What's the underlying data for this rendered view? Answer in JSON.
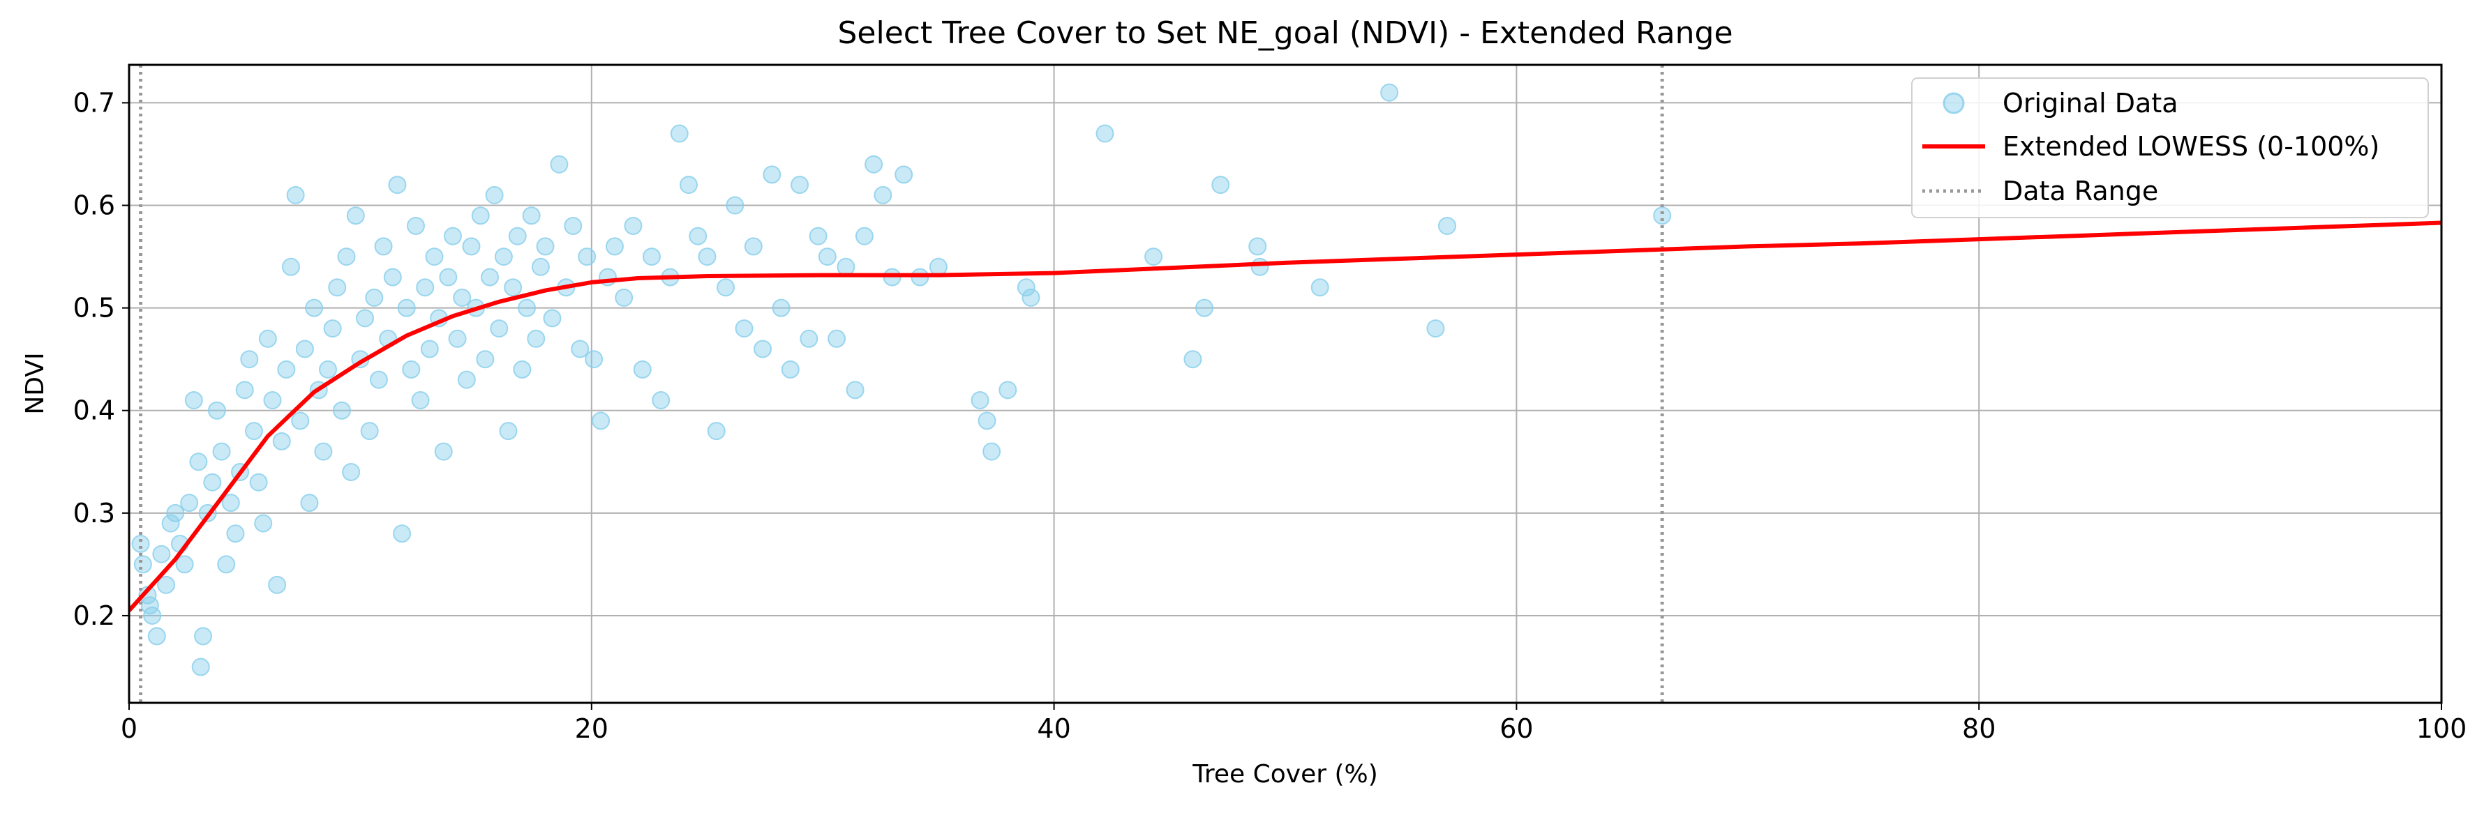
{
  "chart_data": {
    "type": "scatter",
    "title": "Select Tree Cover to Set NE_goal (NDVI) - Extended Range",
    "xlabel": "Tree Cover (%)",
    "ylabel": "NDVI",
    "xlim": [
      0,
      100
    ],
    "ylim": [
      0.115,
      0.737
    ],
    "xticks": [
      0,
      20,
      40,
      60,
      80,
      100
    ],
    "xtick_labels": [
      "0",
      "20",
      "40",
      "60",
      "80",
      "100"
    ],
    "yticks": [
      0.2,
      0.3,
      0.4,
      0.5,
      0.6,
      0.7
    ],
    "ytick_labels": [
      "0.2",
      "0.3",
      "0.4",
      "0.5",
      "0.6",
      "0.7"
    ],
    "grid": true,
    "legend_position": "top-right",
    "legend": [
      "Original Data",
      "Extended LOWESS (0-100%)",
      "Data Range"
    ],
    "colors": {
      "scatter": "#87ceeb",
      "lowess": "#ff0000",
      "range": "#999999",
      "grid": "#b0b0b0"
    },
    "series": [
      {
        "name": "Original Data",
        "type": "scatter",
        "points": [
          [
            0.5,
            0.27
          ],
          [
            0.6,
            0.25
          ],
          [
            0.8,
            0.22
          ],
          [
            1.0,
            0.2
          ],
          [
            1.2,
            0.18
          ],
          [
            1.4,
            0.26
          ],
          [
            0.9,
            0.21
          ],
          [
            1.6,
            0.23
          ],
          [
            1.8,
            0.29
          ],
          [
            2.0,
            0.3
          ],
          [
            2.2,
            0.27
          ],
          [
            2.4,
            0.25
          ],
          [
            2.6,
            0.31
          ],
          [
            2.8,
            0.41
          ],
          [
            3.0,
            0.35
          ],
          [
            3.1,
            0.15
          ],
          [
            3.2,
            0.18
          ],
          [
            3.4,
            0.3
          ],
          [
            3.6,
            0.33
          ],
          [
            3.8,
            0.4
          ],
          [
            4.0,
            0.36
          ],
          [
            4.2,
            0.25
          ],
          [
            4.4,
            0.31
          ],
          [
            4.6,
            0.28
          ],
          [
            4.8,
            0.34
          ],
          [
            5.0,
            0.42
          ],
          [
            5.2,
            0.45
          ],
          [
            5.4,
            0.38
          ],
          [
            5.6,
            0.33
          ],
          [
            5.8,
            0.29
          ],
          [
            6.0,
            0.47
          ],
          [
            6.2,
            0.41
          ],
          [
            6.4,
            0.23
          ],
          [
            6.6,
            0.37
          ],
          [
            6.8,
            0.44
          ],
          [
            7.0,
            0.54
          ],
          [
            7.2,
            0.61
          ],
          [
            7.4,
            0.39
          ],
          [
            7.6,
            0.46
          ],
          [
            7.8,
            0.31
          ],
          [
            8.0,
            0.5
          ],
          [
            8.2,
            0.42
          ],
          [
            8.4,
            0.36
          ],
          [
            8.6,
            0.44
          ],
          [
            8.8,
            0.48
          ],
          [
            9.0,
            0.52
          ],
          [
            9.2,
            0.4
          ],
          [
            9.4,
            0.55
          ],
          [
            9.6,
            0.34
          ],
          [
            9.8,
            0.59
          ],
          [
            10.0,
            0.45
          ],
          [
            10.2,
            0.49
          ],
          [
            10.4,
            0.38
          ],
          [
            10.6,
            0.51
          ],
          [
            10.8,
            0.43
          ],
          [
            11.0,
            0.56
          ],
          [
            11.2,
            0.47
          ],
          [
            11.4,
            0.53
          ],
          [
            11.6,
            0.62
          ],
          [
            11.8,
            0.28
          ],
          [
            12.0,
            0.5
          ],
          [
            12.2,
            0.44
          ],
          [
            12.4,
            0.58
          ],
          [
            12.6,
            0.41
          ],
          [
            12.8,
            0.52
          ],
          [
            13.0,
            0.46
          ],
          [
            13.2,
            0.55
          ],
          [
            13.4,
            0.49
          ],
          [
            13.6,
            0.36
          ],
          [
            13.8,
            0.53
          ],
          [
            14.0,
            0.57
          ],
          [
            14.2,
            0.47
          ],
          [
            14.4,
            0.51
          ],
          [
            14.6,
            0.43
          ],
          [
            14.8,
            0.56
          ],
          [
            15.0,
            0.5
          ],
          [
            15.2,
            0.59
          ],
          [
            15.4,
            0.45
          ],
          [
            15.6,
            0.53
          ],
          [
            15.8,
            0.61
          ],
          [
            16.0,
            0.48
          ],
          [
            16.2,
            0.55
          ],
          [
            16.4,
            0.38
          ],
          [
            16.6,
            0.52
          ],
          [
            16.8,
            0.57
          ],
          [
            17.0,
            0.44
          ],
          [
            17.2,
            0.5
          ],
          [
            17.4,
            0.59
          ],
          [
            17.6,
            0.47
          ],
          [
            17.8,
            0.54
          ],
          [
            18.0,
            0.56
          ],
          [
            18.3,
            0.49
          ],
          [
            18.6,
            0.64
          ],
          [
            18.9,
            0.52
          ],
          [
            19.2,
            0.58
          ],
          [
            19.5,
            0.46
          ],
          [
            19.8,
            0.55
          ],
          [
            20.1,
            0.45
          ],
          [
            20.4,
            0.39
          ],
          [
            20.7,
            0.53
          ],
          [
            21.0,
            0.56
          ],
          [
            21.4,
            0.51
          ],
          [
            21.8,
            0.58
          ],
          [
            22.2,
            0.44
          ],
          [
            22.6,
            0.55
          ],
          [
            23.0,
            0.41
          ],
          [
            23.4,
            0.53
          ],
          [
            23.8,
            0.67
          ],
          [
            24.2,
            0.62
          ],
          [
            24.6,
            0.57
          ],
          [
            25.0,
            0.55
          ],
          [
            25.4,
            0.38
          ],
          [
            25.8,
            0.52
          ],
          [
            26.2,
            0.6
          ],
          [
            26.6,
            0.48
          ],
          [
            27.0,
            0.56
          ],
          [
            27.4,
            0.46
          ],
          [
            27.8,
            0.63
          ],
          [
            28.2,
            0.5
          ],
          [
            28.6,
            0.44
          ],
          [
            29.0,
            0.62
          ],
          [
            29.4,
            0.47
          ],
          [
            29.8,
            0.57
          ],
          [
            30.2,
            0.55
          ],
          [
            30.6,
            0.47
          ],
          [
            31.0,
            0.54
          ],
          [
            31.4,
            0.42
          ],
          [
            31.8,
            0.57
          ],
          [
            32.2,
            0.64
          ],
          [
            32.6,
            0.61
          ],
          [
            33.0,
            0.53
          ],
          [
            33.5,
            0.63
          ],
          [
            34.2,
            0.53
          ],
          [
            35.0,
            0.54
          ],
          [
            36.8,
            0.41
          ],
          [
            37.1,
            0.39
          ],
          [
            37.3,
            0.36
          ],
          [
            38.0,
            0.42
          ],
          [
            38.8,
            0.52
          ],
          [
            39.0,
            0.51
          ],
          [
            42.2,
            0.67
          ],
          [
            44.3,
            0.55
          ],
          [
            46.0,
            0.45
          ],
          [
            46.5,
            0.5
          ],
          [
            47.2,
            0.62
          ],
          [
            48.8,
            0.56
          ],
          [
            48.9,
            0.54
          ],
          [
            51.5,
            0.52
          ],
          [
            54.5,
            0.71
          ],
          [
            56.5,
            0.48
          ],
          [
            57.0,
            0.58
          ],
          [
            66.3,
            0.59
          ]
        ]
      },
      {
        "name": "Extended LOWESS (0-100%)",
        "type": "line",
        "points": [
          [
            0,
            0.205
          ],
          [
            2,
            0.255
          ],
          [
            4,
            0.315
          ],
          [
            6,
            0.375
          ],
          [
            8,
            0.418
          ],
          [
            10,
            0.447
          ],
          [
            12,
            0.473
          ],
          [
            14,
            0.492
          ],
          [
            16,
            0.506
          ],
          [
            18,
            0.517
          ],
          [
            20,
            0.525
          ],
          [
            22,
            0.529
          ],
          [
            25,
            0.531
          ],
          [
            30,
            0.532
          ],
          [
            35,
            0.532
          ],
          [
            40,
            0.534
          ],
          [
            45,
            0.539
          ],
          [
            50,
            0.544
          ],
          [
            55,
            0.548
          ],
          [
            60,
            0.552
          ],
          [
            65,
            0.556
          ],
          [
            70,
            0.56
          ],
          [
            75,
            0.563
          ],
          [
            80,
            0.567
          ],
          [
            85,
            0.571
          ],
          [
            90,
            0.575
          ],
          [
            95,
            0.579
          ],
          [
            100,
            0.583
          ]
        ]
      },
      {
        "name": "Data Range",
        "type": "vline",
        "x": [
          0.5,
          66.3
        ]
      }
    ]
  }
}
